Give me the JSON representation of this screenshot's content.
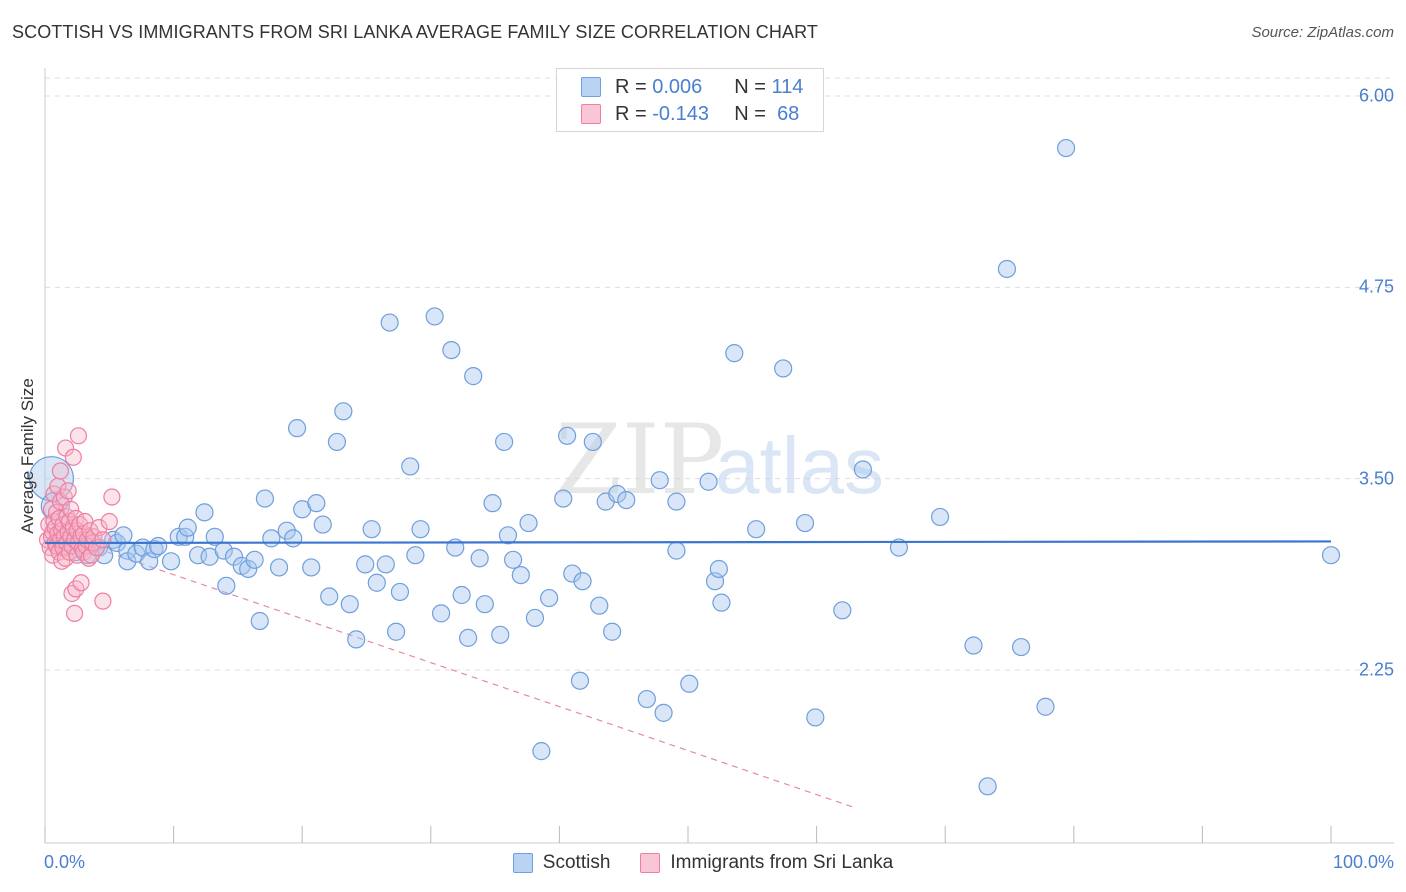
{
  "header": {
    "title": "SCOTTISH VS IMMIGRANTS FROM SRI LANKA AVERAGE FAMILY SIZE CORRELATION CHART",
    "source": "Source: ZipAtlas.com"
  },
  "watermark": {
    "part1": "ZIP",
    "part2": "atlas"
  },
  "legend": {
    "series1": {
      "r_label": "R =",
      "r_value": "0.006",
      "n_label": "N =",
      "n_value": "114",
      "color": "#a9c8f0"
    },
    "series2": {
      "r_label": "R =",
      "r_value": "-0.143",
      "n_label": "N =",
      "n_value": "68",
      "color": "#f7b6c9"
    }
  },
  "bottom_legend": {
    "series1": "Scottish",
    "series2": "Immigrants from Sri Lanka"
  },
  "colors": {
    "blue_fill": "#a9c8f0",
    "blue_stroke": "#6f9fdc",
    "blue_line": "#3a76d0",
    "pink_fill": "#f7b6c9",
    "pink_stroke": "#ec7fa3",
    "pink_line": "#e58aa6",
    "axis_text": "#4a7fd0",
    "grid": "#dddddd"
  },
  "chart_data": {
    "type": "scatter",
    "title": "SCOTTISH VS IMMIGRANTS FROM SRI LANKA AVERAGE FAMILY SIZE CORRELATION CHART",
    "xlabel": "",
    "ylabel": "Average Family Size",
    "xlim": [
      0,
      100
    ],
    "ylim": [
      1.3,
      6.1
    ],
    "x_tick_labels": [
      "0.0%",
      "100.0%"
    ],
    "y_ticks": [
      2.25,
      3.5,
      4.75,
      6.0
    ],
    "y_tick_labels": [
      "2.25",
      "3.50",
      "4.75",
      "6.00"
    ],
    "grid": true,
    "legend_placement": "top-center",
    "series": [
      {
        "name": "Scottish",
        "r": 0.006,
        "n": 114,
        "trend": {
          "x": [
            0,
            100
          ],
          "y": [
            3.08,
            3.09
          ]
        },
        "points": [
          [
            0.5,
            3.5
          ],
          [
            0.8,
            3.32
          ],
          [
            1.2,
            3.12
          ],
          [
            1.6,
            3.05
          ],
          [
            2.0,
            3.1
          ],
          [
            2.4,
            3.02
          ],
          [
            2.8,
            3.06
          ],
          [
            3.3,
            3.0
          ],
          [
            3.7,
            3.08
          ],
          [
            4.2,
            3.05
          ],
          [
            4.6,
            3.0
          ],
          [
            5.3,
            3.1
          ],
          [
            5.6,
            3.08
          ],
          [
            6.1,
            3.13
          ],
          [
            6.4,
            3.03
          ],
          [
            6.4,
            2.96
          ],
          [
            7.1,
            3.01
          ],
          [
            7.6,
            3.05
          ],
          [
            8.1,
            2.96
          ],
          [
            8.5,
            3.04
          ],
          [
            8.8,
            3.06
          ],
          [
            9.8,
            2.96
          ],
          [
            10.4,
            3.12
          ],
          [
            10.9,
            3.12
          ],
          [
            11.1,
            3.18
          ],
          [
            11.9,
            3.0
          ],
          [
            12.4,
            3.28
          ],
          [
            12.8,
            2.99
          ],
          [
            13.2,
            3.12
          ],
          [
            13.9,
            3.03
          ],
          [
            14.1,
            2.8
          ],
          [
            14.7,
            2.99
          ],
          [
            15.3,
            2.93
          ],
          [
            15.8,
            2.91
          ],
          [
            16.3,
            2.97
          ],
          [
            16.7,
            2.57
          ],
          [
            17.1,
            3.37
          ],
          [
            17.6,
            3.11
          ],
          [
            18.2,
            2.92
          ],
          [
            18.8,
            3.16
          ],
          [
            19.3,
            3.11
          ],
          [
            19.6,
            3.83
          ],
          [
            20.0,
            3.3
          ],
          [
            20.7,
            2.92
          ],
          [
            21.1,
            3.34
          ],
          [
            21.6,
            3.2
          ],
          [
            22.1,
            2.73
          ],
          [
            22.7,
            3.74
          ],
          [
            23.2,
            3.94
          ],
          [
            23.7,
            2.68
          ],
          [
            24.2,
            2.45
          ],
          [
            24.9,
            2.94
          ],
          [
            25.4,
            3.17
          ],
          [
            25.8,
            2.82
          ],
          [
            26.5,
            2.94
          ],
          [
            26.8,
            4.52
          ],
          [
            27.3,
            2.5
          ],
          [
            27.6,
            2.76
          ],
          [
            28.4,
            3.58
          ],
          [
            28.8,
            3.0
          ],
          [
            29.2,
            3.17
          ],
          [
            30.3,
            4.56
          ],
          [
            30.8,
            2.62
          ],
          [
            31.6,
            4.34
          ],
          [
            31.9,
            3.05
          ],
          [
            32.4,
            2.74
          ],
          [
            32.9,
            2.46
          ],
          [
            33.3,
            4.17
          ],
          [
            33.8,
            2.98
          ],
          [
            34.2,
            2.68
          ],
          [
            34.8,
            3.34
          ],
          [
            35.4,
            2.48
          ],
          [
            35.7,
            3.74
          ],
          [
            36.0,
            3.13
          ],
          [
            36.4,
            2.97
          ],
          [
            37.0,
            2.87
          ],
          [
            37.6,
            3.21
          ],
          [
            38.1,
            2.59
          ],
          [
            38.6,
            1.72
          ],
          [
            39.2,
            2.72
          ],
          [
            40.3,
            3.37
          ],
          [
            40.6,
            3.78
          ],
          [
            41.0,
            2.88
          ],
          [
            41.6,
            2.18
          ],
          [
            41.8,
            2.83
          ],
          [
            42.6,
            3.74
          ],
          [
            43.1,
            2.67
          ],
          [
            43.6,
            3.35
          ],
          [
            44.1,
            2.5
          ],
          [
            44.5,
            3.4
          ],
          [
            45.2,
            3.36
          ],
          [
            46.8,
            2.06
          ],
          [
            47.8,
            3.49
          ],
          [
            48.1,
            1.97
          ],
          [
            49.1,
            3.35
          ],
          [
            49.1,
            3.03
          ],
          [
            50.1,
            2.16
          ],
          [
            51.6,
            3.48
          ],
          [
            52.1,
            2.83
          ],
          [
            52.4,
            2.91
          ],
          [
            52.6,
            2.69
          ],
          [
            53.6,
            4.32
          ],
          [
            55.3,
            3.17
          ],
          [
            57.4,
            4.22
          ],
          [
            59.1,
            3.21
          ],
          [
            59.9,
            1.94
          ],
          [
            62.0,
            2.64
          ],
          [
            63.6,
            3.56
          ],
          [
            66.4,
            3.05
          ],
          [
            69.6,
            3.25
          ],
          [
            72.2,
            2.41
          ],
          [
            73.3,
            1.49
          ],
          [
            74.8,
            4.87
          ],
          [
            75.9,
            2.4
          ],
          [
            77.8,
            2.01
          ],
          [
            79.4,
            5.66
          ],
          [
            100.0,
            3.0
          ]
        ]
      },
      {
        "name": "Immigrants from Sri Lanka",
        "r": -0.143,
        "n": 68,
        "trend": {
          "x": [
            0,
            63
          ],
          "y": [
            3.16,
            1.35
          ]
        },
        "points": [
          [
            0.2,
            3.1
          ],
          [
            0.3,
            3.2
          ],
          [
            0.4,
            3.05
          ],
          [
            0.5,
            3.3
          ],
          [
            0.5,
            3.12
          ],
          [
            0.6,
            3.15
          ],
          [
            0.6,
            3.0
          ],
          [
            0.7,
            3.4
          ],
          [
            0.7,
            3.22
          ],
          [
            0.8,
            3.08
          ],
          [
            0.8,
            3.18
          ],
          [
            0.9,
            3.28
          ],
          [
            0.9,
            3.06
          ],
          [
            1.0,
            3.14
          ],
          [
            1.0,
            3.45
          ],
          [
            1.1,
            3.02
          ],
          [
            1.1,
            3.24
          ],
          [
            1.2,
            3.1
          ],
          [
            1.2,
            3.35
          ],
          [
            1.3,
            3.16
          ],
          [
            1.3,
            2.96
          ],
          [
            1.4,
            3.2
          ],
          [
            1.4,
            3.05
          ],
          [
            1.5,
            3.38
          ],
          [
            1.5,
            3.12
          ],
          [
            1.6,
            3.7
          ],
          [
            1.6,
            2.98
          ],
          [
            1.7,
            3.25
          ],
          [
            1.7,
            3.08
          ],
          [
            1.8,
            3.15
          ],
          [
            1.8,
            3.42
          ],
          [
            1.9,
            3.02
          ],
          [
            1.9,
            3.22
          ],
          [
            2.0,
            3.12
          ],
          [
            2.0,
            3.3
          ],
          [
            2.1,
            3.06
          ],
          [
            2.1,
            2.75
          ],
          [
            2.2,
            3.18
          ],
          [
            2.2,
            3.64
          ],
          [
            2.3,
            2.62
          ],
          [
            2.3,
            3.1
          ],
          [
            2.4,
            3.24
          ],
          [
            2.4,
            2.78
          ],
          [
            2.5,
            3.0
          ],
          [
            2.5,
            3.16
          ],
          [
            2.6,
            3.78
          ],
          [
            2.6,
            3.08
          ],
          [
            2.7,
            3.2
          ],
          [
            2.8,
            2.82
          ],
          [
            2.8,
            3.12
          ],
          [
            2.9,
            3.04
          ],
          [
            3.0,
            3.14
          ],
          [
            3.0,
            3.02
          ],
          [
            3.1,
            3.22
          ],
          [
            3.2,
            3.06
          ],
          [
            3.3,
            3.1
          ],
          [
            3.4,
            2.98
          ],
          [
            3.5,
            3.16
          ],
          [
            3.6,
            3.0
          ],
          [
            3.7,
            3.08
          ],
          [
            3.8,
            3.12
          ],
          [
            4.0,
            3.05
          ],
          [
            4.2,
            3.18
          ],
          [
            4.5,
            3.1
          ],
          [
            5.0,
            3.22
          ],
          [
            5.2,
            3.38
          ],
          [
            1.2,
            3.55
          ],
          [
            4.5,
            2.7
          ]
        ]
      }
    ]
  }
}
